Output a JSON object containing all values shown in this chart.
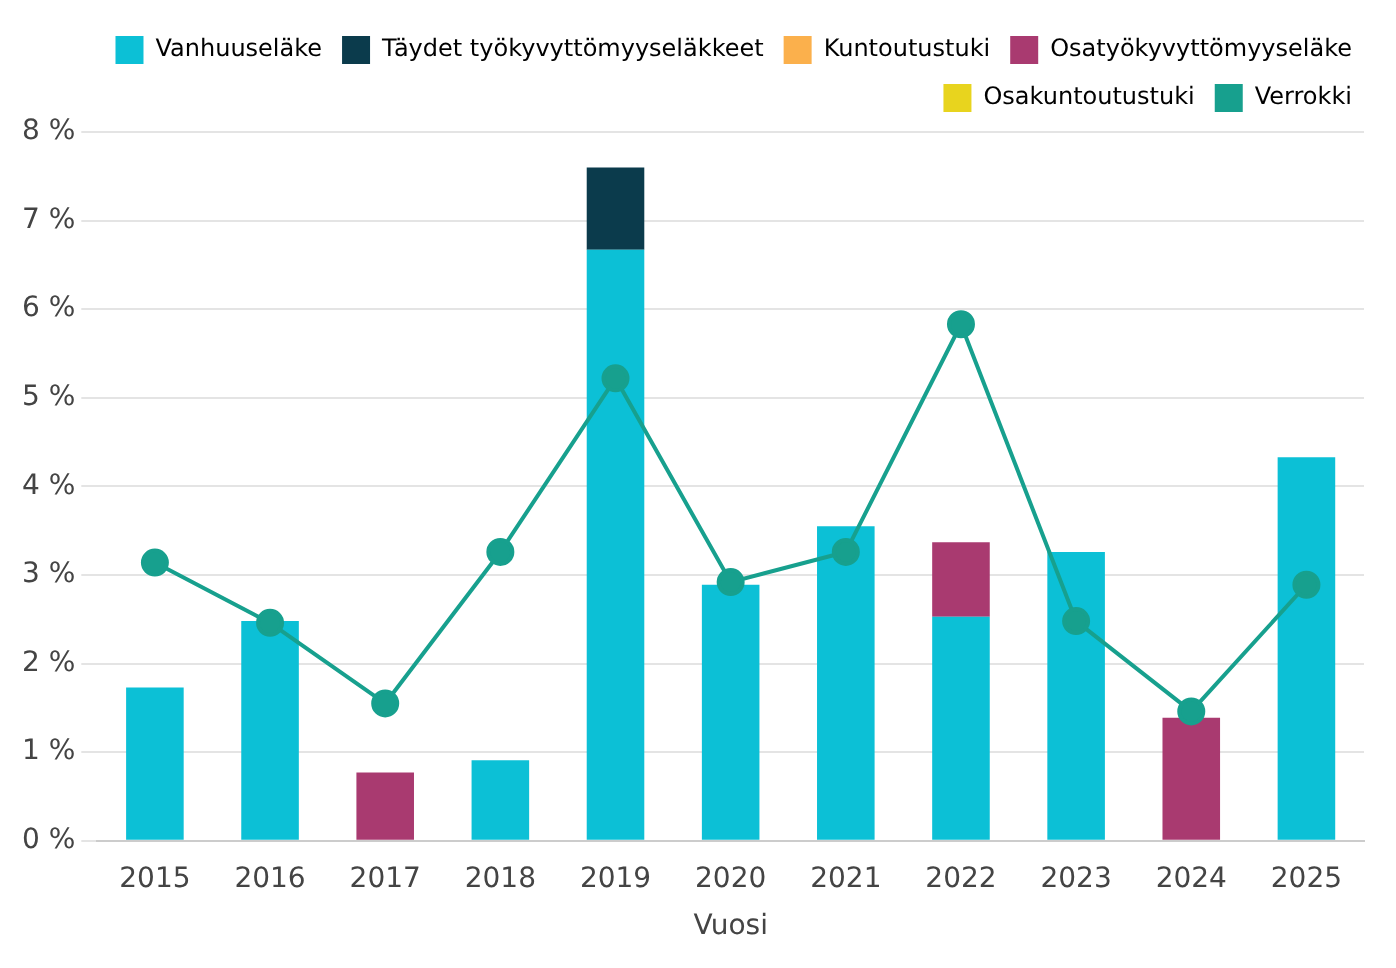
{
  "chart_data": {
    "type": "bar",
    "stacked": true,
    "xlabel": "Vuosi",
    "categories": [
      "2015",
      "2016",
      "2017",
      "2018",
      "2019",
      "2020",
      "2021",
      "2022",
      "2023",
      "2024",
      "2025"
    ],
    "series": [
      {
        "name": "Vanhuuseläke",
        "color": "#0cc0d6",
        "values": [
          1.73,
          2.48,
          null,
          0.91,
          6.67,
          2.89,
          3.55,
          2.53,
          3.26,
          null,
          4.33
        ]
      },
      {
        "name": "Täydet työkyvyttömyyseläkkeet",
        "color": "#0b3b4c",
        "values": [
          null,
          null,
          null,
          null,
          0.93,
          null,
          null,
          null,
          null,
          null,
          null
        ]
      },
      {
        "name": "Kuntoutustuki",
        "color": "#fbb04c",
        "values": [
          null,
          null,
          null,
          null,
          null,
          null,
          null,
          null,
          null,
          null,
          null
        ]
      },
      {
        "name": "Osatyökyvyttömyyseläke",
        "color": "#a93a70",
        "values": [
          null,
          null,
          0.77,
          null,
          null,
          null,
          null,
          0.84,
          null,
          1.39,
          null
        ]
      },
      {
        "name": "Osakuntoutustuki",
        "color": "#e8d41e",
        "values": [
          null,
          null,
          null,
          null,
          null,
          null,
          null,
          null,
          null,
          null,
          null
        ]
      },
      {
        "name": "Verrokki",
        "type": "line",
        "color": "#17a08e",
        "marker": "circle",
        "line_style": "solid",
        "values": [
          3.14,
          2.46,
          1.55,
          3.26,
          5.22,
          2.92,
          3.26,
          5.83,
          2.48,
          1.46,
          2.89
        ]
      }
    ],
    "ylim": [
      0,
      8
    ],
    "yticks": [
      {
        "value": 0,
        "label": "0 %"
      },
      {
        "value": 1,
        "label": "1 %"
      },
      {
        "value": 2,
        "label": "2 %"
      },
      {
        "value": 3,
        "label": "3 %"
      },
      {
        "value": 4,
        "label": "4 %"
      },
      {
        "value": 5,
        "label": "5 %"
      },
      {
        "value": 6,
        "label": "6 %"
      },
      {
        "value": 7,
        "label": "7 %"
      },
      {
        "value": 8,
        "label": "8 %"
      }
    ],
    "grid": "y",
    "legend": "top right"
  }
}
